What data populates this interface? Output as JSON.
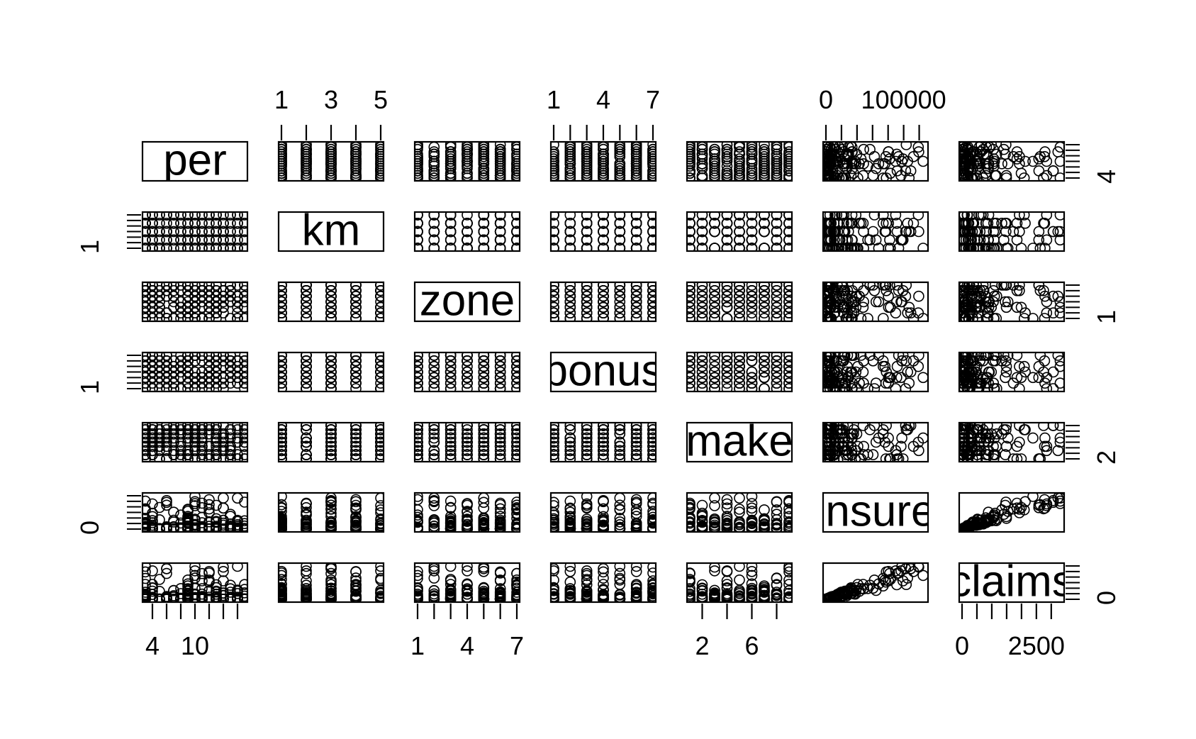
{
  "chart_data": {
    "type": "scatter",
    "title": "",
    "variables": [
      "per",
      "km",
      "zone",
      "bonus",
      "make",
      "insure",
      "claims"
    ],
    "axis_ticks": {
      "per": {
        "side": "bottom",
        "labels": [
          "4",
          "10"
        ],
        "marks": [
          4,
          6,
          8,
          10,
          12,
          14,
          16
        ]
      },
      "km": {
        "side": "top",
        "labels": [
          "1",
          "3",
          "5"
        ],
        "marks": [
          1,
          2,
          3,
          4,
          5
        ]
      },
      "zone": {
        "side": "bottom",
        "labels": [
          "1",
          "4",
          "7"
        ],
        "marks": [
          1,
          2,
          3,
          4,
          5,
          6,
          7
        ]
      },
      "bonus": {
        "side": "top",
        "labels": [
          "1",
          "4",
          "7"
        ],
        "marks": [
          1,
          2,
          3,
          4,
          5,
          6,
          7
        ]
      },
      "make": {
        "side": "bottom",
        "labels": [
          "2",
          "6"
        ],
        "marks": [
          2,
          4,
          6,
          8
        ]
      },
      "insure": {
        "side": "top",
        "labels": [
          "0",
          "100000"
        ],
        "marks": [
          0,
          20000,
          40000,
          60000,
          80000,
          100000,
          120000
        ]
      },
      "claims": {
        "side": "bottom",
        "labels": [
          "0",
          "2500"
        ],
        "marks": [
          0,
          500,
          1000,
          1500,
          2000,
          2500,
          3000
        ]
      }
    },
    "left_axis_labels": {
      "km": "1",
      "bonus": "1",
      "insure": "0"
    },
    "right_axis_labels": {
      "per": "4",
      "zone": "1",
      "make": "2",
      "claims": "0"
    },
    "ranges": {
      "per": [
        3,
        17
      ],
      "km": [
        1,
        5
      ],
      "zone": [
        1,
        7
      ],
      "bonus": [
        1,
        7
      ],
      "make": [
        1,
        9
      ],
      "insure": [
        0,
        127700
      ],
      "claims": [
        0,
        3338
      ]
    },
    "marker": "open-circle",
    "grid": false,
    "legend": "none"
  }
}
